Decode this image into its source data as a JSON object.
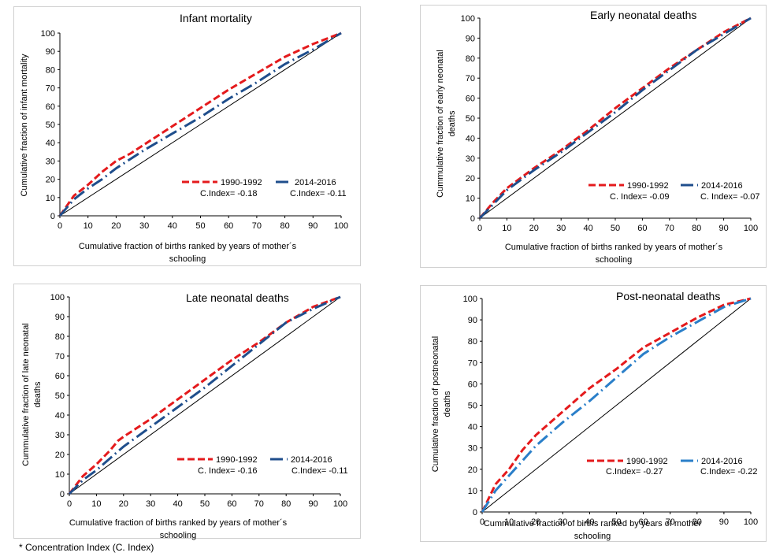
{
  "footnote": "* Concentration Index (C. Index)",
  "colors": {
    "series1990": "#e41a1c",
    "series2014_dark": "#1f4e8c",
    "series2014_light": "#2a7fc9",
    "equality": "#000000"
  },
  "chart_data": [
    {
      "type": "line",
      "title": "Infant mortality",
      "xlabel": [
        "Cumulative fraction of births ranked by years of mother´s",
        "schooling"
      ],
      "ylabel": [
        "Cumulative fraction of infant mortality"
      ],
      "xlim": [
        0,
        100
      ],
      "ylim": [
        0,
        100
      ],
      "xticks": [
        0,
        10,
        20,
        30,
        40,
        50,
        60,
        70,
        80,
        90,
        100
      ],
      "yticks": [
        0,
        10,
        20,
        30,
        40,
        50,
        60,
        70,
        80,
        90,
        100
      ],
      "legend_position": "bottom-right",
      "series": [
        {
          "name": "1990-1992",
          "index_label": "C.Index= -0.18",
          "style": "dashed",
          "color": "#e41a1c",
          "x": [
            0,
            5,
            10,
            15,
            20,
            25,
            30,
            40,
            50,
            60,
            70,
            80,
            90,
            100
          ],
          "y": [
            0,
            11,
            17,
            24,
            30,
            34,
            39,
            49,
            59,
            69,
            78,
            87,
            94,
            100
          ]
        },
        {
          "name": "2014-2016",
          "index_label": "C.Index= -0.11",
          "style": "dashdot",
          "color": "#1f4e8c",
          "x": [
            0,
            5,
            10,
            15,
            20,
            30,
            40,
            50,
            60,
            70,
            80,
            90,
            100
          ],
          "y": [
            0,
            9,
            15,
            20,
            26,
            36,
            45,
            54,
            64,
            73,
            83,
            91,
            100
          ]
        }
      ]
    },
    {
      "type": "line",
      "title": "Early neonatal deaths",
      "xlabel": [
        "Cumulative fraction of births ranked by years of mother´s",
        "schooling"
      ],
      "ylabel": [
        "Cummulative fraction of early neonatal",
        "deaths"
      ],
      "xlim": [
        0,
        100
      ],
      "ylim": [
        0,
        100
      ],
      "xticks": [
        0,
        10,
        20,
        30,
        40,
        50,
        60,
        70,
        80,
        90,
        100
      ],
      "yticks": [
        0,
        10,
        20,
        30,
        40,
        50,
        60,
        70,
        80,
        90,
        100
      ],
      "legend_position": "bottom-right",
      "series": [
        {
          "name": "1990-1992",
          "index_label": "C. Index= -0.09",
          "style": "dashed",
          "color": "#e41a1c",
          "x": [
            0,
            5,
            10,
            20,
            30,
            40,
            50,
            60,
            70,
            80,
            90,
            100
          ],
          "y": [
            0,
            8,
            15,
            25,
            34,
            44,
            55,
            65,
            75,
            84,
            93,
            100
          ]
        },
        {
          "name": "2014-2016",
          "index_label": "C. Index= -0.07",
          "style": "dashdot",
          "color": "#1f4e8c",
          "x": [
            0,
            5,
            10,
            20,
            30,
            40,
            50,
            60,
            70,
            80,
            90,
            100
          ],
          "y": [
            0,
            7,
            14,
            24,
            33,
            43,
            53,
            64,
            74,
            84,
            92,
            100
          ]
        }
      ]
    },
    {
      "type": "line",
      "title": "Late neonatal deaths",
      "xlabel": [
        "Cumulative fraction of births ranked by years of mother´s",
        "schooling"
      ],
      "ylabel": [
        "Cummulative fraction of late neonatal",
        "deaths"
      ],
      "xlim": [
        0,
        100
      ],
      "ylim": [
        0,
        100
      ],
      "xticks": [
        0,
        10,
        20,
        30,
        40,
        50,
        60,
        70,
        80,
        90,
        100
      ],
      "yticks": [
        0,
        10,
        20,
        30,
        40,
        50,
        60,
        70,
        80,
        90,
        100
      ],
      "legend_position": "bottom-right",
      "series": [
        {
          "name": "1990-1992",
          "index_label": "C. Index= -0.16",
          "style": "dashed",
          "color": "#e41a1c",
          "x": [
            0,
            5,
            10,
            15,
            18,
            20,
            30,
            40,
            50,
            60,
            70,
            80,
            90,
            100
          ],
          "y": [
            0,
            9,
            15,
            22,
            27,
            29,
            38,
            48,
            58,
            68,
            77,
            87,
            95,
            100
          ]
        },
        {
          "name": "2014-2016",
          "index_label": "C.Index= -0.11",
          "style": "dashdot",
          "color": "#1f4e8c",
          "x": [
            0,
            5,
            10,
            15,
            20,
            30,
            40,
            50,
            60,
            70,
            80,
            90,
            100
          ],
          "y": [
            0,
            7,
            12,
            18,
            24,
            34,
            44,
            54,
            65,
            76,
            87,
            94,
            100
          ]
        }
      ]
    },
    {
      "type": "line",
      "title": "Post-neonatal deaths",
      "xlabel": [
        "Cummulative fraction of births ranked by years of mother",
        "schooling"
      ],
      "ylabel": [
        "Cumulative fraction of postneonatal",
        "deaths"
      ],
      "xlim": [
        0,
        100
      ],
      "ylim": [
        0,
        100
      ],
      "xticks": [
        0,
        10,
        20,
        30,
        40,
        50,
        60,
        70,
        80,
        90,
        100
      ],
      "yticks": [
        0,
        10,
        20,
        30,
        40,
        50,
        60,
        70,
        80,
        90,
        100
      ],
      "legend_position": "bottom-right",
      "series": [
        {
          "name": "1990-1992",
          "index_label": "C.Index= -0.27",
          "style": "dashed",
          "color": "#e41a1c",
          "x": [
            0,
            5,
            10,
            15,
            20,
            30,
            40,
            50,
            60,
            70,
            80,
            90,
            100
          ],
          "y": [
            0,
            13,
            20,
            29,
            36,
            47,
            58,
            67,
            77,
            84,
            91,
            97,
            100
          ]
        },
        {
          "name": "2014-2016",
          "index_label": "C.Index= -0.22",
          "style": "dashdot",
          "color": "#2a7fc9",
          "x": [
            0,
            5,
            10,
            15,
            20,
            30,
            40,
            50,
            60,
            70,
            80,
            90,
            100
          ],
          "y": [
            0,
            10,
            17,
            24,
            31,
            42,
            52,
            63,
            74,
            82,
            89,
            96,
            100
          ]
        }
      ]
    }
  ]
}
